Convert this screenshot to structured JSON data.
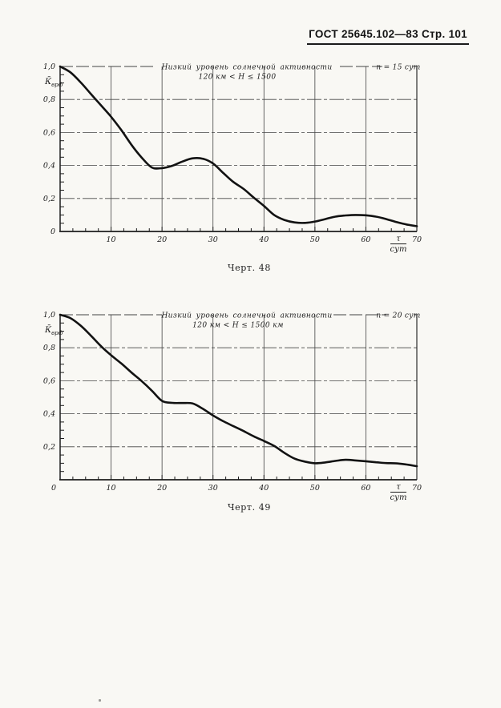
{
  "header": {
    "text": "ГОСТ 25645.102—83 Стр. 101"
  },
  "chart_data": [
    {
      "type": "line",
      "figure_caption": "Черт. 48",
      "title": "Низкий уровень солнечной активности",
      "subtitle": "120 км < H ≤ 1500",
      "condition_label": "n = 15 сут",
      "ylabel_base": "К̄",
      "ylabel_sub": "врф",
      "xlabel_numerator": "τ",
      "xlabel_denominator": "сут",
      "xlim": [
        0,
        70
      ],
      "ylim": [
        0,
        1
      ],
      "x_major_ticks": [
        10,
        20,
        30,
        40,
        50,
        60,
        70
      ],
      "x_tick_labels": [
        "10",
        "20",
        "30",
        "40",
        "50",
        "60",
        "70"
      ],
      "x_minor_step": 2.5,
      "y_major_ticks": [
        0,
        0.2,
        0.4,
        0.6,
        0.8,
        1.0
      ],
      "y_tick_labels": [
        "0",
        "0,2",
        "0,4",
        "0,6",
        "0,8",
        "1,0"
      ],
      "y_minor_step": 0.05,
      "grid": true,
      "x": [
        0,
        2,
        4,
        6,
        8,
        10,
        12,
        14,
        16,
        18,
        20,
        22,
        24,
        26,
        28,
        30,
        32,
        34,
        36,
        38,
        40,
        42,
        44,
        46,
        48,
        50,
        52,
        54,
        56,
        58,
        60,
        62,
        64,
        66,
        68,
        70
      ],
      "y": [
        1.0,
        0.965,
        0.905,
        0.835,
        0.765,
        0.695,
        0.615,
        0.525,
        0.448,
        0.388,
        0.384,
        0.398,
        0.424,
        0.443,
        0.441,
        0.412,
        0.355,
        0.3,
        0.258,
        0.205,
        0.155,
        0.1,
        0.07,
        0.055,
        0.052,
        0.06,
        0.075,
        0.09,
        0.097,
        0.1,
        0.098,
        0.09,
        0.075,
        0.057,
        0.042,
        0.032
      ]
    },
    {
      "type": "line",
      "figure_caption": "Черт. 49",
      "title": "Низкий уровень солнечной активности",
      "subtitle": "120 км < H ≤ 1500 км",
      "condition_label": "n = 20 сут",
      "ylabel_base": "К̄",
      "ylabel_sub": "врф",
      "xlabel_numerator": "τ",
      "xlabel_denominator": "сут",
      "xlim": [
        0,
        70
      ],
      "ylim": [
        0,
        1
      ],
      "x_major_ticks": [
        0,
        10,
        20,
        30,
        40,
        50,
        60,
        70
      ],
      "x_tick_labels": [
        "0",
        "10",
        "20",
        "30",
        "40",
        "50",
        "60",
        "70"
      ],
      "x_minor_step": 2.5,
      "y_major_ticks": [
        0.2,
        0.4,
        0.6,
        0.8,
        1.0
      ],
      "y_tick_labels": [
        "0,2",
        "0,4",
        "0,6",
        "0,8",
        "1,0"
      ],
      "y_minor_step": 0.05,
      "grid": true,
      "x": [
        0,
        2,
        4,
        6,
        8,
        10,
        12,
        14,
        16,
        18,
        20,
        22,
        24,
        26,
        28,
        30,
        32,
        34,
        36,
        38,
        40,
        42,
        44,
        46,
        48,
        50,
        52,
        54,
        56,
        58,
        60,
        62,
        64,
        66,
        68,
        70
      ],
      "y": [
        1.0,
        0.98,
        0.935,
        0.875,
        0.81,
        0.755,
        0.705,
        0.65,
        0.598,
        0.54,
        0.478,
        0.466,
        0.465,
        0.462,
        0.43,
        0.39,
        0.355,
        0.325,
        0.295,
        0.263,
        0.235,
        0.205,
        0.163,
        0.128,
        0.11,
        0.1,
        0.105,
        0.114,
        0.121,
        0.117,
        0.112,
        0.106,
        0.101,
        0.099,
        0.092,
        0.082
      ]
    }
  ]
}
